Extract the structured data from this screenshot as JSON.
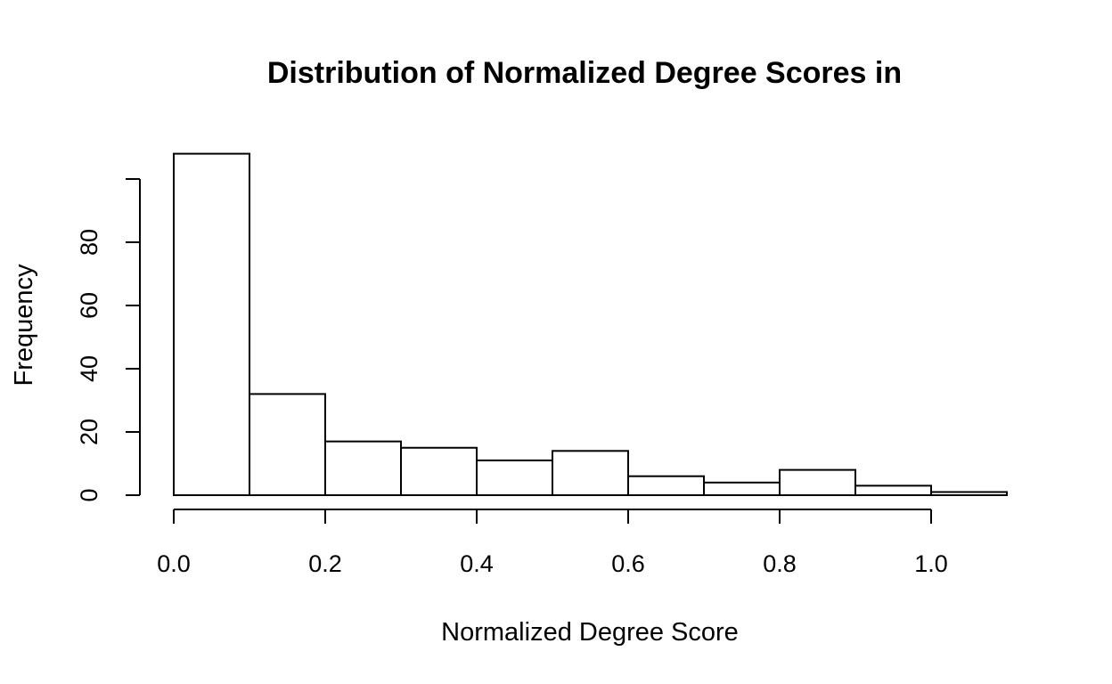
{
  "chart_data": {
    "type": "bar",
    "title": "Distribution of Normalized Degree Scores in",
    "xlabel": "Normalized Degree Score",
    "ylabel": "Frequency",
    "bins": [
      {
        "start": 0.0,
        "end": 0.1,
        "value": 108
      },
      {
        "start": 0.1,
        "end": 0.2,
        "value": 32
      },
      {
        "start": 0.2,
        "end": 0.3,
        "value": 17
      },
      {
        "start": 0.3,
        "end": 0.4,
        "value": 15
      },
      {
        "start": 0.4,
        "end": 0.5,
        "value": 11
      },
      {
        "start": 0.5,
        "end": 0.6,
        "value": 14
      },
      {
        "start": 0.6,
        "end": 0.7,
        "value": 6
      },
      {
        "start": 0.7,
        "end": 0.8,
        "value": 4
      },
      {
        "start": 0.8,
        "end": 0.9,
        "value": 8
      },
      {
        "start": 0.9,
        "end": 1.0,
        "value": 3
      },
      {
        "start": 1.0,
        "end": 1.1,
        "value": 1
      }
    ],
    "xticks": [
      0.0,
      0.2,
      0.4,
      0.6,
      0.8,
      1.0
    ],
    "xtick_labels": [
      "0.0",
      "0.2",
      "0.4",
      "0.6",
      "0.8",
      "1.0"
    ],
    "yticks": [
      0,
      20,
      40,
      60,
      80,
      100
    ],
    "ytick_labels": [
      "0",
      "20",
      "40",
      "60",
      "80",
      ""
    ],
    "xlim": [
      0.0,
      1.1
    ],
    "ylim": [
      0,
      108
    ],
    "grid": false,
    "legend": "none"
  }
}
